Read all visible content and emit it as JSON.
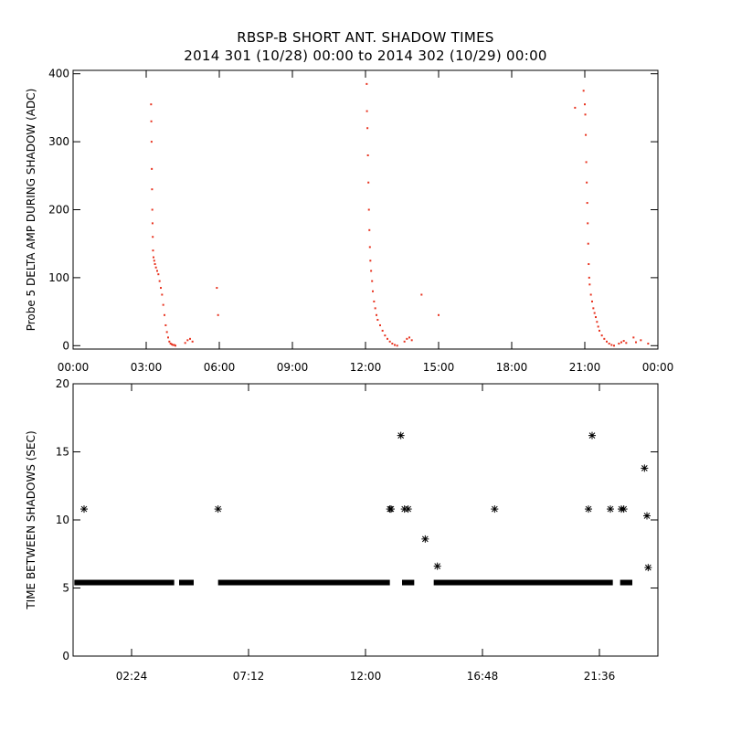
{
  "title_line1": "RBSP-B SHORT ANT. SHADOW TIMES",
  "title_line2": "2014 301 (10/28) 00:00 to 2014 302 (10/29) 00:00",
  "colors": {
    "top_points": "#e8321e",
    "bottom_points": "#000000",
    "axes": "#000000"
  },
  "chart_data": [
    {
      "type": "scatter",
      "ylabel": "Probe 5 DELTA AMP DURING SHADOW (ADC)",
      "xlabel": "",
      "x_units": "hours",
      "xlim": [
        0,
        24
      ],
      "ylim": [
        -5,
        405
      ],
      "x_tick_values": [
        0,
        3,
        6,
        9,
        12,
        15,
        18,
        21,
        24
      ],
      "x_tick_labels": [
        "00:00",
        "03:00",
        "06:00",
        "09:00",
        "12:00",
        "15:00",
        "18:00",
        "21:00",
        "00:00"
      ],
      "y_tick_values": [
        0,
        100,
        200,
        300,
        400
      ],
      "y_tick_labels": [
        "0",
        "100",
        "200",
        "300",
        "400"
      ],
      "grid": false,
      "series": [
        {
          "color": "#e8321e",
          "marker": "dot",
          "points": [
            [
              3.2,
              355
            ],
            [
              3.21,
              330
            ],
            [
              3.22,
              300
            ],
            [
              3.23,
              260
            ],
            [
              3.24,
              230
            ],
            [
              3.25,
              200
            ],
            [
              3.26,
              180
            ],
            [
              3.27,
              160
            ],
            [
              3.28,
              140
            ],
            [
              3.3,
              130
            ],
            [
              3.33,
              125
            ],
            [
              3.36,
              120
            ],
            [
              3.4,
              115
            ],
            [
              3.45,
              110
            ],
            [
              3.5,
              105
            ],
            [
              3.55,
              95
            ],
            [
              3.6,
              85
            ],
            [
              3.65,
              75
            ],
            [
              3.7,
              60
            ],
            [
              3.75,
              45
            ],
            [
              3.8,
              30
            ],
            [
              3.85,
              20
            ],
            [
              3.9,
              12
            ],
            [
              3.95,
              6
            ],
            [
              4.0,
              3
            ],
            [
              4.05,
              2
            ],
            [
              4.1,
              1
            ],
            [
              4.15,
              1
            ],
            [
              4.2,
              0
            ],
            [
              4.6,
              4
            ],
            [
              4.7,
              8
            ],
            [
              4.8,
              10
            ],
            [
              4.9,
              6
            ],
            [
              5.9,
              85
            ],
            [
              5.95,
              45
            ],
            [
              12.05,
              385
            ],
            [
              12.06,
              345
            ],
            [
              12.08,
              320
            ],
            [
              12.1,
              280
            ],
            [
              12.12,
              240
            ],
            [
              12.14,
              200
            ],
            [
              12.16,
              170
            ],
            [
              12.18,
              145
            ],
            [
              12.2,
              125
            ],
            [
              12.23,
              110
            ],
            [
              12.27,
              95
            ],
            [
              12.3,
              80
            ],
            [
              12.35,
              65
            ],
            [
              12.4,
              55
            ],
            [
              12.45,
              45
            ],
            [
              12.5,
              38
            ],
            [
              12.6,
              30
            ],
            [
              12.7,
              22
            ],
            [
              12.8,
              15
            ],
            [
              12.9,
              10
            ],
            [
              13.0,
              6
            ],
            [
              13.1,
              3
            ],
            [
              13.2,
              1
            ],
            [
              13.3,
              0
            ],
            [
              13.6,
              6
            ],
            [
              13.7,
              10
            ],
            [
              13.8,
              12
            ],
            [
              13.9,
              8
            ],
            [
              14.3,
              75
            ],
            [
              15.0,
              45
            ],
            [
              20.6,
              350
            ],
            [
              20.95,
              375
            ],
            [
              21.0,
              355
            ],
            [
              21.02,
              340
            ],
            [
              21.04,
              310
            ],
            [
              21.06,
              270
            ],
            [
              21.08,
              240
            ],
            [
              21.1,
              210
            ],
            [
              21.12,
              180
            ],
            [
              21.14,
              150
            ],
            [
              21.16,
              120
            ],
            [
              21.18,
              100
            ],
            [
              21.2,
              90
            ],
            [
              21.25,
              75
            ],
            [
              21.3,
              65
            ],
            [
              21.35,
              55
            ],
            [
              21.4,
              48
            ],
            [
              21.45,
              42
            ],
            [
              21.5,
              35
            ],
            [
              21.55,
              28
            ],
            [
              21.6,
              22
            ],
            [
              21.7,
              15
            ],
            [
              21.8,
              10
            ],
            [
              21.9,
              6
            ],
            [
              22.0,
              3
            ],
            [
              22.1,
              1
            ],
            [
              22.2,
              0
            ],
            [
              22.4,
              3
            ],
            [
              22.5,
              5
            ],
            [
              22.6,
              7
            ],
            [
              22.7,
              4
            ],
            [
              23.0,
              12
            ],
            [
              23.1,
              5
            ],
            [
              23.3,
              8
            ],
            [
              23.6,
              3
            ]
          ]
        }
      ]
    },
    {
      "type": "scatter",
      "ylabel": "TIME BETWEEN SHADOWS (SEC)",
      "xlabel": "",
      "x_units": "hours",
      "xlim": [
        0,
        24
      ],
      "ylim": [
        0,
        20
      ],
      "x_tick_values": [
        2.4,
        7.2,
        12,
        16.8,
        21.6
      ],
      "x_tick_labels": [
        "02:24",
        "07:12",
        "12:00",
        "16:48",
        "21:36"
      ],
      "y_tick_values": [
        0,
        5,
        10,
        15,
        20
      ],
      "y_tick_labels": [
        "0",
        "5",
        "10",
        "15",
        "20"
      ],
      "grid": false,
      "baseline": {
        "value": 5.4,
        "segments": [
          [
            0.05,
            4.15
          ],
          [
            4.35,
            4.95
          ],
          [
            5.95,
            13.0
          ],
          [
            13.5,
            14.0
          ],
          [
            14.8,
            22.15
          ],
          [
            22.45,
            22.95
          ]
        ]
      },
      "series": [
        {
          "color": "#000000",
          "marker": "asterisk",
          "points": [
            [
              0.45,
              10.8
            ],
            [
              5.95,
              10.8
            ],
            [
              13.0,
              10.8
            ],
            [
              13.05,
              10.8
            ],
            [
              13.45,
              16.2
            ],
            [
              13.6,
              10.8
            ],
            [
              13.75,
              10.8
            ],
            [
              14.45,
              8.6
            ],
            [
              14.95,
              6.6
            ],
            [
              17.3,
              10.8
            ],
            [
              21.15,
              10.8
            ],
            [
              21.3,
              16.2
            ],
            [
              22.05,
              10.8
            ],
            [
              22.5,
              10.8
            ],
            [
              22.6,
              10.8
            ],
            [
              23.45,
              13.8
            ],
            [
              23.55,
              10.3
            ],
            [
              23.6,
              6.5
            ]
          ]
        }
      ]
    }
  ]
}
